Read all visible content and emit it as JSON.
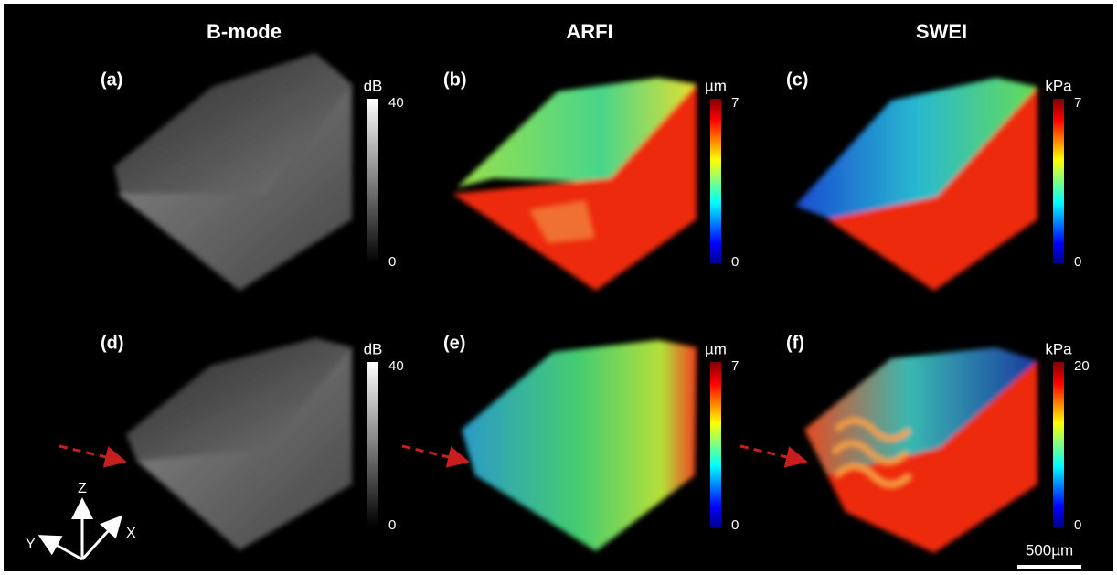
{
  "columns": [
    "B-mode",
    "ARFI",
    "SWEI"
  ],
  "panels": [
    {
      "label": "(a)",
      "unit": "dB",
      "max": 40,
      "min": 0
    },
    {
      "label": "(b)",
      "unit": "µm",
      "max": 7,
      "min": 0
    },
    {
      "label": "(c)",
      "unit": "kPa",
      "max": 7,
      "min": 0
    },
    {
      "label": "(d)",
      "unit": "dB",
      "max": 40,
      "min": 0
    },
    {
      "label": "(e)",
      "unit": "µm",
      "max": 7,
      "min": 0
    },
    {
      "label": "(f)",
      "unit": "kPa",
      "max": 20,
      "min": 0
    }
  ],
  "axes": {
    "z": "Z",
    "x": "X",
    "y": "Y"
  },
  "scale_bar": "500µm"
}
